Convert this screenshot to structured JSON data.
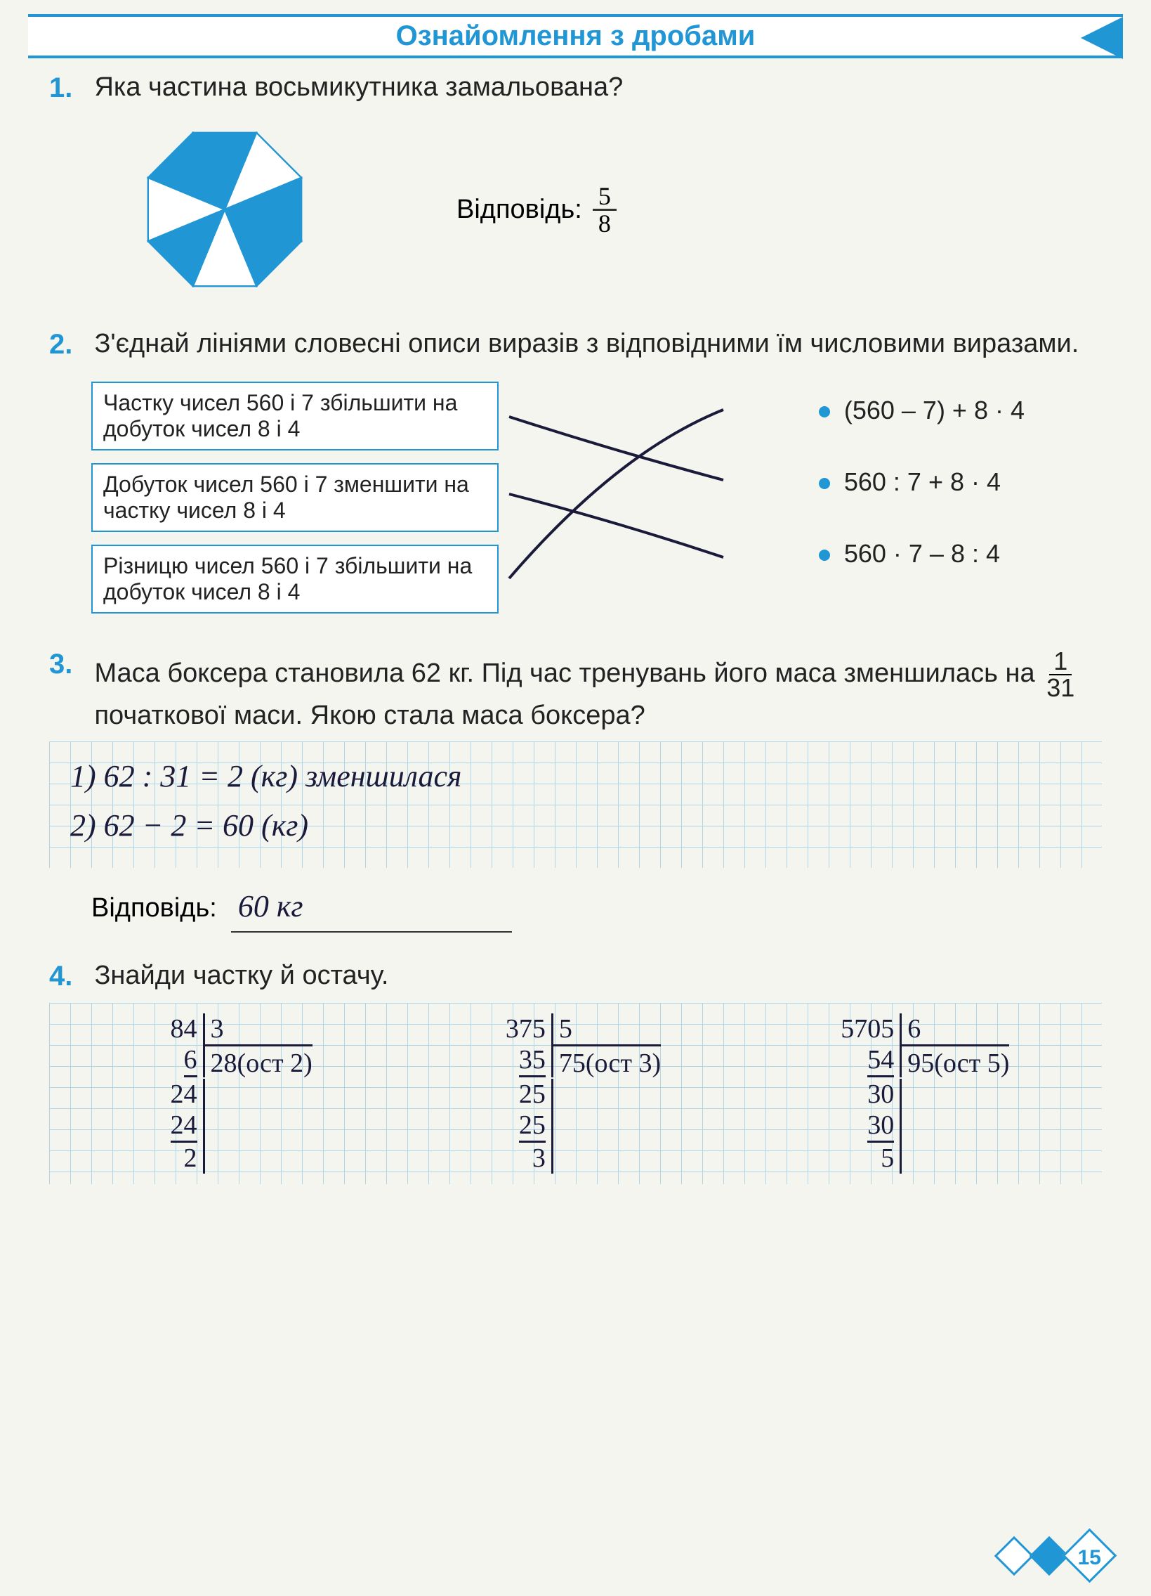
{
  "header": {
    "title": "Ознайомлення з дробами"
  },
  "problem1": {
    "num": "1.",
    "question": "Яка частина восьмикутника замальована?",
    "answer_label": "Відповідь:",
    "answer_num": "5",
    "answer_den": "8",
    "octagon": {
      "colored_segments": [
        0,
        2,
        4,
        5,
        7
      ],
      "fill_color": "#2196d4",
      "stroke_color": "#2196d4"
    }
  },
  "problem2": {
    "num": "2.",
    "question": "З'єднай лініями словесні описи виразів з відповідними їм числовими виразами.",
    "left": [
      "Частку чисел 560 і 7 збільшити на добуток чисел 8 і 4",
      "Добуток чисел 560 і 7 зменшити на частку чисел 8 і 4",
      "Різницю чисел 560 і 7 збільшити на добуток чисел 8 і 4"
    ],
    "right": [
      "(560 – 7) + 8 · 4",
      "560 : 7 + 8 · 4",
      "560 · 7 – 8 : 4"
    ],
    "line_color": "#1a1a3a"
  },
  "problem3": {
    "num": "3.",
    "question_p1": "Маса боксера становила 62 кг. Під час тренувань його маса зменшилась на ",
    "frac_num": "1",
    "frac_den": "31",
    "question_p2": " початкової маси. Якою стала маса боксера?",
    "work": [
      "1) 62 : 31 = 2 (кг) зменшилася",
      "2) 62 − 2 = 60 (кг)"
    ],
    "answer_label": "Відповідь:",
    "answer_value": "60 кг"
  },
  "problem4": {
    "num": "4.",
    "question": "Знайди частку й остачу.",
    "divisions": [
      {
        "dividend": "84",
        "divisor": "3",
        "quotient": "28",
        "remainder_label": "(ост 2)",
        "steps": [
          "6",
          "24",
          "24",
          "2"
        ]
      },
      {
        "dividend": "375",
        "divisor": "5",
        "quotient": "75",
        "remainder_label": "(ост 3)",
        "steps": [
          "35",
          "25",
          "25",
          "3"
        ]
      },
      {
        "dividend": "5705",
        "divisor": "6",
        "quotient": "95",
        "remainder_label": "(ост 5)",
        "steps": [
          "54",
          "30",
          "30",
          "5"
        ]
      }
    ]
  },
  "page_number": "15",
  "colors": {
    "primary": "#2196d4",
    "text": "#222222",
    "handwriting": "#1a1a3a",
    "grid": "#b0d4e8"
  }
}
